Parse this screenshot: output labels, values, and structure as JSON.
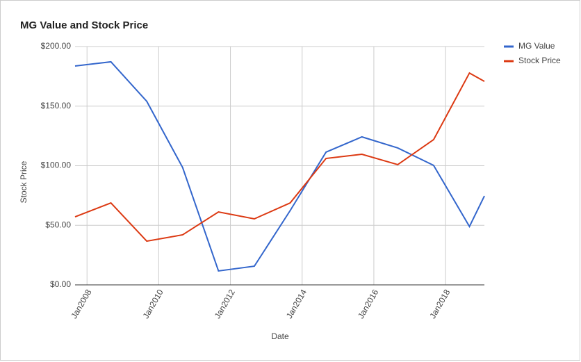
{
  "chart_data": {
    "type": "line",
    "title": "MG Value and Stock Price",
    "x_label": "Date",
    "y_label": "Stock Price",
    "x": [
      "2007-09",
      "2008-09",
      "2009-09",
      "2010-09",
      "2011-09",
      "2012-09",
      "2013-09",
      "2014-09",
      "2015-09",
      "2016-09",
      "2017-09",
      "2018-09",
      "2019-02"
    ],
    "series": [
      {
        "name": "MG Value",
        "color": "#3366cc",
        "values": [
          183.7,
          187.2,
          154,
          98.5,
          11.7,
          15.7,
          62.4,
          111.4,
          124.2,
          114.9,
          100.3,
          49,
          74.6
        ]
      },
      {
        "name": "Stock Price",
        "color": "#dc3912",
        "values": [
          57.1,
          68.8,
          36.7,
          42,
          61.2,
          55.4,
          68.8,
          106.1,
          109.6,
          100.9,
          121.9,
          177.8,
          170.8
        ]
      }
    ],
    "xlim": [
      "2007-09",
      "2019-02"
    ],
    "xticks": [
      {
        "value": "2008-01",
        "label": "Jan2008"
      },
      {
        "value": "2010-01",
        "label": "Jan2010"
      },
      {
        "value": "2012-01",
        "label": "Jan2012"
      },
      {
        "value": "2014-01",
        "label": "Jan2014"
      },
      {
        "value": "2016-01",
        "label": "Jan2016"
      },
      {
        "value": "2018-01",
        "label": "Jan2018"
      }
    ],
    "ylim": [
      0,
      200
    ],
    "yticks": [
      {
        "value": 0,
        "label": "$0.00"
      },
      {
        "value": 50,
        "label": "$50.00"
      },
      {
        "value": 100,
        "label": "$100.00"
      },
      {
        "value": 150,
        "label": "$150.00"
      },
      {
        "value": 200,
        "label": "$200.00"
      }
    ],
    "grid": true,
    "legend": "right"
  }
}
